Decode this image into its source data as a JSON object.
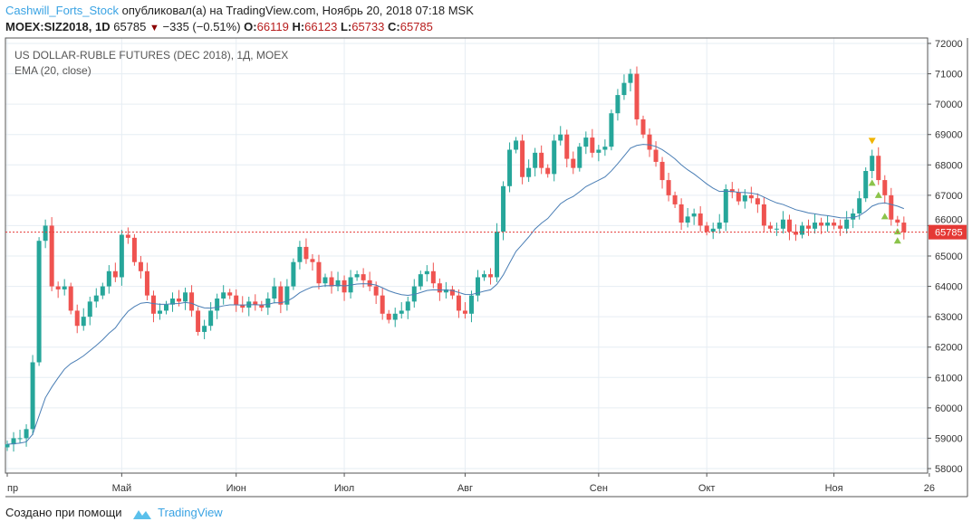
{
  "header": {
    "user": "Cashwill_Forts_Stock",
    "published": "опубликовал(а) на TradingView.com, Ноябрь 20, 2018 07:18 MSK",
    "symbol": "MOEX:SIZ2018, 1D",
    "price": "65785",
    "change": "−335 (−0.51%)",
    "o_label": "O:",
    "o": "66119",
    "h_label": "H:",
    "h": "66123",
    "l_label": "L:",
    "l": "65733",
    "c_label": "C:",
    "c": "65785"
  },
  "footer": {
    "created": "Создано при помощи",
    "brand": "TradingView"
  },
  "chart_data": {
    "type": "candlestick",
    "title": "US DOLLAR-RUBLE FUTURES (DEC 2018), 1Д, MOEX",
    "indicator": "EMA (20, close)",
    "ylim": [
      57700,
      72200
    ],
    "y_ticks": [
      58000,
      59000,
      60000,
      61000,
      62000,
      63000,
      64000,
      65000,
      66000,
      67000,
      68000,
      69000,
      70000,
      71000,
      72000
    ],
    "x_ticks": [
      {
        "label": "пр",
        "i": 0
      },
      {
        "label": "Май",
        "i": 18
      },
      {
        "label": "Июн",
        "i": 36
      },
      {
        "label": "Июл",
        "i": 53
      },
      {
        "label": "Авг",
        "i": 72
      },
      {
        "label": "Сен",
        "i": 93
      },
      {
        "label": "Окт",
        "i": 110
      },
      {
        "label": "Ноя",
        "i": 130
      },
      {
        "label": "26",
        "i": 145
      }
    ],
    "last_price": "65785",
    "colors": {
      "up": "#26a69a",
      "down": "#ef5350",
      "ema": "#4a7eb5",
      "last": "#e53935"
    },
    "closes": [
      58800,
      59000,
      59000,
      59300,
      61500,
      65500,
      66000,
      64000,
      63900,
      64000,
      63200,
      62700,
      63000,
      63500,
      63700,
      64000,
      64500,
      64300,
      65700,
      65600,
      64800,
      64500,
      63700,
      63100,
      63200,
      63400,
      63600,
      63500,
      63800,
      63200,
      62500,
      62700,
      63200,
      63600,
      63800,
      63700,
      63400,
      63300,
      63500,
      63400,
      63300,
      63600,
      64000,
      63400,
      64000,
      64800,
      65300,
      64900,
      64800,
      64100,
      64300,
      64000,
      64200,
      63800,
      64300,
      64400,
      64200,
      64000,
      63700,
      63100,
      62900,
      63100,
      63200,
      63500,
      64000,
      64400,
      64500,
      64100,
      63800,
      63900,
      63700,
      63200,
      63100,
      63700,
      64300,
      64400,
      64300,
      65800,
      67300,
      68500,
      68800,
      67600,
      67900,
      68400,
      67900,
      67700,
      68800,
      69000,
      68200,
      67900,
      68600,
      68900,
      68400,
      68500,
      68600,
      69700,
      70300,
      70700,
      71000,
      69500,
      69000,
      68500,
      68100,
      67500,
      67000,
      66700,
      66100,
      66300,
      66400,
      66000,
      65800,
      65900,
      66100,
      67200,
      67100,
      66800,
      67000,
      66900,
      66700,
      66000,
      65900,
      65900,
      66200,
      65800,
      65700,
      66000,
      65900,
      66100,
      66000,
      66100,
      66000,
      65900,
      66200,
      66400,
      66900,
      67800,
      68300,
      67500,
      67000,
      66200,
      66100,
      65785
    ],
    "signals": [
      {
        "i": 136,
        "price": 68800,
        "dir": "down",
        "color": "#f0b400"
      },
      {
        "i": 136,
        "price": 67400,
        "dir": "up",
        "color": "#8bc34a"
      },
      {
        "i": 137,
        "price": 67000,
        "dir": "up",
        "color": "#8bc34a"
      },
      {
        "i": 138,
        "price": 66300,
        "dir": "up",
        "color": "#8bc34a"
      },
      {
        "i": 140,
        "price": 65800,
        "dir": "up",
        "color": "#8bc34a"
      },
      {
        "i": 140,
        "price": 65500,
        "dir": "up",
        "color": "#8bc34a"
      }
    ]
  }
}
